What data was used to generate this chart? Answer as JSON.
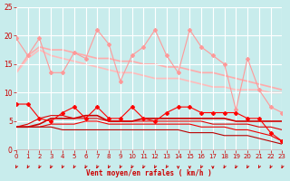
{
  "background_color": "#c8ecec",
  "grid_color": "#ffffff",
  "x_values": [
    0,
    1,
    2,
    3,
    4,
    5,
    6,
    7,
    8,
    9,
    10,
    11,
    12,
    13,
    14,
    15,
    16,
    17,
    18,
    19,
    20,
    21,
    22,
    23
  ],
  "lines": [
    {
      "y": [
        19.5,
        16.5,
        19.5,
        13.5,
        13.5,
        17.0,
        16.0,
        21.0,
        18.5,
        12.0,
        16.5,
        18.0,
        21.0,
        16.5,
        13.5,
        21.0,
        18.0,
        16.5,
        15.0,
        7.0,
        16.0,
        10.5,
        7.5,
        6.5
      ],
      "color": "#ff9999",
      "marker": "D",
      "markersize": 2.0,
      "linewidth": 0.8,
      "zorder": 2
    },
    {
      "y": [
        13.5,
        16.5,
        18.0,
        17.5,
        17.5,
        17.0,
        16.5,
        16.0,
        16.0,
        15.5,
        15.5,
        15.0,
        15.0,
        14.5,
        14.5,
        14.0,
        13.5,
        13.5,
        13.0,
        12.5,
        12.0,
        11.5,
        11.0,
        10.5
      ],
      "color": "#ffaaaa",
      "marker": null,
      "markersize": 0,
      "linewidth": 1.2,
      "zorder": 1
    },
    {
      "y": [
        13.5,
        16.0,
        17.5,
        16.5,
        16.0,
        15.5,
        15.0,
        14.5,
        14.0,
        13.5,
        13.5,
        13.0,
        12.5,
        12.5,
        12.5,
        12.0,
        11.5,
        11.0,
        11.0,
        10.5,
        10.5,
        10.5,
        10.0,
        10.0
      ],
      "color": "#ffbbbb",
      "marker": null,
      "markersize": 0,
      "linewidth": 1.2,
      "zorder": 1
    },
    {
      "y": [
        8.0,
        8.0,
        5.5,
        5.0,
        6.5,
        7.5,
        5.5,
        7.5,
        5.5,
        5.5,
        7.5,
        5.5,
        5.0,
        6.5,
        7.5,
        7.5,
        6.5,
        6.5,
        6.5,
        6.5,
        5.5,
        5.5,
        3.0,
        1.5
      ],
      "color": "#ff0000",
      "marker": "D",
      "markersize": 2.0,
      "linewidth": 0.8,
      "zorder": 3
    },
    {
      "y": [
        4.0,
        4.0,
        4.5,
        5.5,
        5.5,
        5.5,
        6.0,
        6.0,
        5.0,
        5.0,
        5.0,
        5.5,
        5.5,
        5.5,
        5.5,
        5.5,
        5.5,
        5.5,
        5.5,
        5.0,
        5.0,
        5.0,
        5.0,
        5.0
      ],
      "color": "#cc0000",
      "marker": null,
      "markersize": 0,
      "linewidth": 1.2,
      "zorder": 2
    },
    {
      "y": [
        4.0,
        4.5,
        5.5,
        6.0,
        6.0,
        5.5,
        5.5,
        5.5,
        5.0,
        5.0,
        5.0,
        5.0,
        5.0,
        5.0,
        5.0,
        5.0,
        5.0,
        4.5,
        4.5,
        4.5,
        4.5,
        4.0,
        4.0,
        3.5
      ],
      "color": "#dd0000",
      "marker": null,
      "markersize": 0,
      "linewidth": 0.8,
      "zorder": 2
    },
    {
      "y": [
        4.0,
        4.0,
        4.0,
        4.5,
        4.5,
        4.5,
        5.0,
        5.0,
        4.5,
        4.5,
        4.5,
        4.5,
        4.5,
        4.5,
        4.5,
        4.5,
        4.0,
        4.0,
        4.0,
        3.5,
        3.5,
        3.0,
        2.5,
        1.5
      ],
      "color": "#ee0000",
      "marker": null,
      "markersize": 0,
      "linewidth": 0.8,
      "zorder": 2
    },
    {
      "y": [
        4.0,
        4.0,
        4.0,
        4.0,
        3.5,
        3.5,
        3.5,
        3.5,
        3.5,
        3.5,
        3.5,
        3.5,
        3.5,
        3.5,
        3.5,
        3.0,
        3.0,
        3.0,
        2.5,
        2.5,
        2.5,
        2.0,
        1.5,
        1.0
      ],
      "color": "#bb0000",
      "marker": null,
      "markersize": 0,
      "linewidth": 0.8,
      "zorder": 2
    }
  ],
  "xlabel": "Vent moyen/en rafales ( km/h )",
  "ylim": [
    0,
    25
  ],
  "yticks": [
    0,
    5,
    10,
    15,
    20,
    25
  ],
  "xlim": [
    0,
    23
  ],
  "xticks": [
    0,
    1,
    2,
    3,
    4,
    5,
    6,
    7,
    8,
    9,
    10,
    11,
    12,
    13,
    14,
    15,
    16,
    17,
    18,
    19,
    20,
    21,
    22,
    23
  ],
  "xlabel_color": "#cc0000",
  "tick_color": "#cc0000",
  "arrow_color": "#cc0000",
  "arrow_angles": [
    225,
    225,
    225,
    225,
    225,
    225,
    225,
    225,
    225,
    225,
    225,
    225,
    225,
    215,
    270,
    270,
    225,
    270,
    225,
    225,
    225,
    225,
    225,
    225
  ]
}
